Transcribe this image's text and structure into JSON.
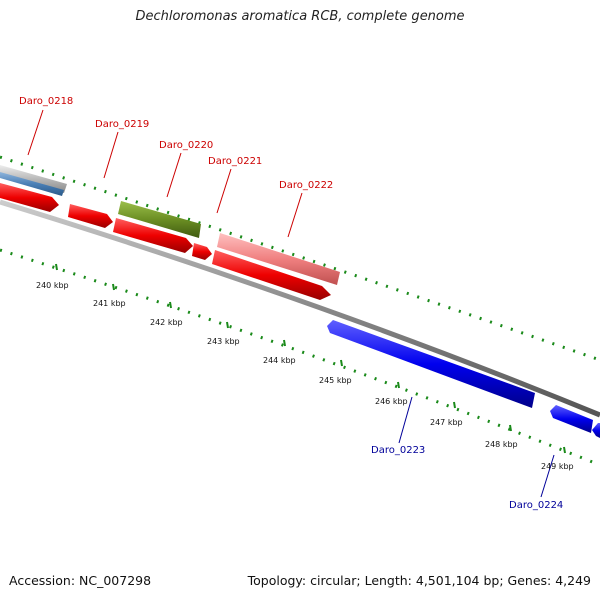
{
  "header": {
    "title": "Dechloromonas aromatica RCB, complete genome"
  },
  "footer": {
    "accession": "Accession: NC_007298",
    "summary": "Topology: circular; Length: 4,501,104 bp; Genes: 4,249"
  },
  "colors": {
    "forward_cds": "#ee0000",
    "reverse_cds": "#0000dd",
    "forward_label": "#cc0000",
    "reverse_label": "#000099",
    "trna_like": "#6b8e23",
    "pink_feature": "#f08080",
    "backbone": "#888888",
    "gc_ticks": "#1a8a1a"
  },
  "genes": {
    "forward": [
      "Daro_0218",
      "Daro_0219",
      "Daro_0220",
      "Daro_0221",
      "Daro_0222"
    ],
    "reverse": [
      "Daro_0223",
      "Daro_0224"
    ]
  },
  "scale_ticks": [
    "240 kbp",
    "241 kbp",
    "242 kbp",
    "243 kbp",
    "244 kbp",
    "245 kbp",
    "246 kbp",
    "247 kbp",
    "248 kbp",
    "249 kbp"
  ]
}
